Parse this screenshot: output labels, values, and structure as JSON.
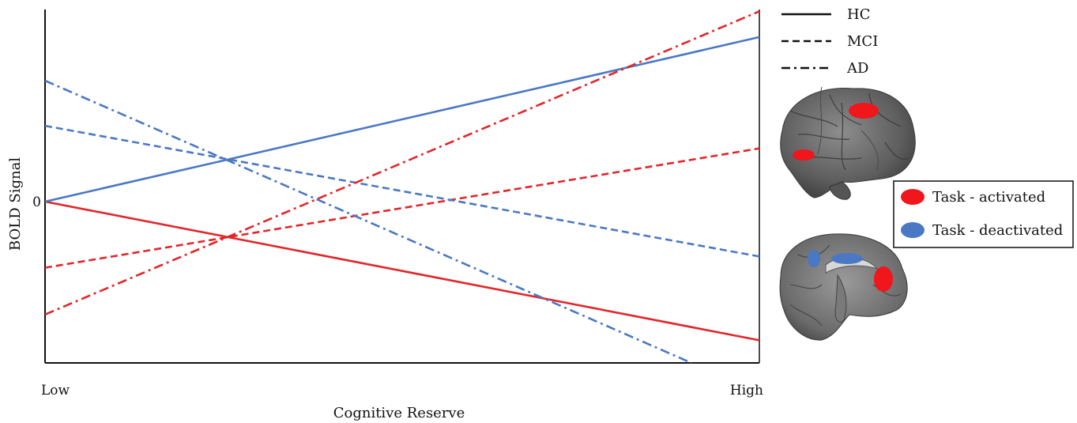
{
  "chart_data": {
    "type": "line",
    "xlabel": "Cognitive Reserve",
    "ylabel": "BOLD Signal",
    "x_tick_labels": [
      "Low",
      "High"
    ],
    "y_tick_label": "0",
    "xlim": [
      0,
      1
    ],
    "ylim": [
      -1.0,
      1.2
    ],
    "grid": false,
    "series": [
      {
        "name": "HC activated",
        "group": "HC",
        "style": "solid",
        "color": "#e3262a",
        "x": [
          0,
          1
        ],
        "y": [
          0.0,
          -0.86
        ]
      },
      {
        "name": "HC deactivated",
        "group": "HC",
        "style": "solid",
        "color": "#4a78c4",
        "x": [
          0,
          1
        ],
        "y": [
          0.0,
          1.02
        ]
      },
      {
        "name": "MCI activated",
        "group": "MCI",
        "style": "dashed",
        "color": "#e3262a",
        "x": [
          0,
          1
        ],
        "y": [
          -0.41,
          0.33
        ]
      },
      {
        "name": "MCI deactivated",
        "group": "MCI",
        "style": "dashed",
        "color": "#4a78c4",
        "x": [
          0,
          1
        ],
        "y": [
          0.47,
          -0.34
        ]
      },
      {
        "name": "AD activated",
        "group": "AD",
        "style": "dashdot",
        "color": "#e3262a",
        "x": [
          0,
          1
        ],
        "y": [
          -0.7,
          1.18
        ]
      },
      {
        "name": "AD deactivated",
        "group": "AD",
        "style": "dashdot",
        "color": "#4a78c4",
        "x": [
          0,
          0.905
        ],
        "y": [
          0.75,
          -1.0
        ]
      }
    ]
  },
  "legend_styles": [
    {
      "label": "HC",
      "style": "solid"
    },
    {
      "label": "MCI",
      "style": "dashed"
    },
    {
      "label": "AD",
      "style": "dashdot"
    }
  ],
  "legend_colors": [
    {
      "label": "Task - activated",
      "color": "#f0161b"
    },
    {
      "label": "Task - deactivated",
      "color": "#4a78c4"
    }
  ],
  "brain_icons": [
    "lateral-brain-icon",
    "medial-brain-icon"
  ]
}
